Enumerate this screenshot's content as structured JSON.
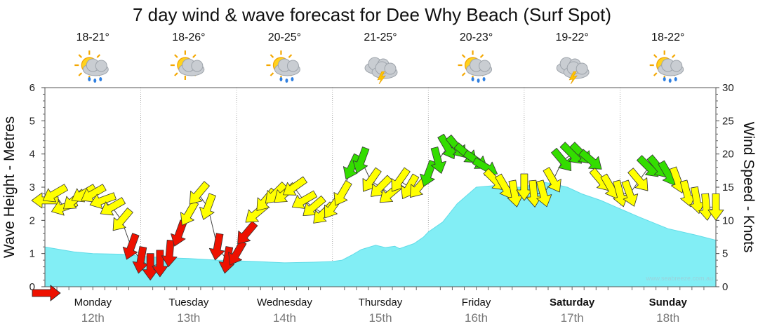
{
  "chart_data": {
    "type": "area",
    "title": "7 day wind & wave forecast for Dee Why Beach  (Surf Spot)",
    "ylabel_left": "Wave Height - Metres",
    "ylabel_right": "Wind Speed - Knots",
    "ylim_left": [
      0,
      6
    ],
    "ylim_right": [
      0,
      30
    ],
    "yticks_left": [
      "0",
      "1",
      "2",
      "3",
      "4",
      "5",
      "6"
    ],
    "yticks_right": [
      "0",
      "5",
      "10",
      "15",
      "20",
      "25",
      "30"
    ],
    "watermark": "www.seabreeze.com.au",
    "colors": {
      "wave_fill": "#82EEF5",
      "wave_line": "#61DCE8",
      "light": "#FFFF00",
      "moderate": "#33DD00",
      "strong": "#EE1100"
    },
    "days": [
      {
        "name": "Monday",
        "date": "12th",
        "temp": "18-21°",
        "icon": "sun-cloud-rain-icon",
        "bold": false
      },
      {
        "name": "Tuesday",
        "date": "13th",
        "temp": "18-26°",
        "icon": "sun-cloud-icon",
        "bold": false
      },
      {
        "name": "Wednesday",
        "date": "14th",
        "temp": "20-25°",
        "icon": "sun-cloud-rain-icon",
        "bold": false
      },
      {
        "name": "Thursday",
        "date": "15th",
        "temp": "21-25°",
        "icon": "storm-icon",
        "bold": false
      },
      {
        "name": "Friday",
        "date": "16th",
        "temp": "20-23°",
        "icon": "sun-cloud-rain-icon",
        "bold": false
      },
      {
        "name": "Saturday",
        "date": "17th",
        "temp": "19-22°",
        "icon": "storm-icon",
        "bold": true
      },
      {
        "name": "Sunday",
        "date": "18th",
        "temp": "18-22°",
        "icon": "sun-cloud-rain-icon",
        "bold": true
      }
    ],
    "wave_series": {
      "name": "Wave Height",
      "x_days": [
        0,
        0.1,
        0.3,
        0.5,
        0.8,
        1.0,
        1.2,
        1.5,
        1.8,
        2.0,
        2.2,
        2.5,
        2.8,
        3.0,
        3.1,
        3.2,
        3.3,
        3.45,
        3.55,
        3.65,
        3.7,
        3.85,
        3.95,
        4.0,
        4.15,
        4.3,
        4.5,
        4.7,
        4.8,
        4.9,
        5.0,
        5.1,
        5.2,
        5.3,
        5.45,
        5.6,
        5.8,
        6.0,
        6.2,
        6.5,
        6.8,
        7.0
      ],
      "y_m": [
        1.2,
        1.15,
        1.05,
        1.0,
        0.98,
        0.92,
        0.88,
        0.85,
        0.8,
        0.78,
        0.76,
        0.72,
        0.74,
        0.76,
        0.8,
        0.95,
        1.12,
        1.25,
        1.18,
        1.22,
        1.15,
        1.3,
        1.5,
        1.65,
        1.95,
        2.5,
        3.0,
        3.05,
        3.03,
        3.0,
        3.0,
        3.1,
        3.15,
        3.1,
        3.0,
        2.8,
        2.6,
        2.35,
        2.1,
        1.75,
        1.55,
        1.4
      ]
    },
    "wind_series": {
      "name": "Wind Speed (knots)",
      "x_days": [
        0,
        0.1,
        0.2,
        0.3,
        0.4,
        0.5,
        0.6,
        0.7,
        0.8,
        0.9,
        1.0,
        1.1,
        1.2,
        1.3,
        1.4,
        1.5,
        1.6,
        1.7,
        1.8,
        1.9,
        2.0,
        2.1,
        2.2,
        2.3,
        2.4,
        2.5,
        2.6,
        2.7,
        2.8,
        2.9,
        3.0,
        3.1,
        3.2,
        3.3,
        3.4,
        3.5,
        3.6,
        3.7,
        3.8,
        3.9,
        4.0,
        4.1,
        4.2,
        4.3,
        4.4,
        4.5,
        4.6,
        4.7,
        4.8,
        4.9,
        5.0,
        5.1,
        5.2,
        5.3,
        5.4,
        5.5,
        5.6,
        5.7,
        5.8,
        5.9,
        6.0,
        6.1,
        6.2,
        6.3,
        6.4,
        6.5,
        6.6,
        6.7,
        6.8,
        6.9,
        7.0
      ],
      "knots": [
        13,
        14,
        12,
        13,
        14,
        14,
        13,
        12,
        10,
        6,
        4,
        3,
        3.5,
        5,
        8,
        11,
        14,
        12,
        6,
        4,
        5,
        8,
        11,
        13,
        14,
        14,
        15,
        13,
        12,
        11,
        12,
        14,
        18,
        19,
        16,
        15,
        14,
        16,
        15,
        15,
        17,
        19,
        21,
        21,
        20,
        19,
        18,
        16,
        15,
        14,
        15,
        14,
        14,
        16,
        19,
        20,
        20,
        19,
        16,
        15,
        14,
        14,
        16,
        18,
        18,
        17,
        16,
        14,
        13,
        12,
        12
      ],
      "direction_deg": [
        270,
        240,
        250,
        230,
        240,
        240,
        250,
        240,
        220,
        200,
        190,
        180,
        180,
        185,
        200,
        210,
        220,
        200,
        190,
        190,
        210,
        220,
        230,
        220,
        225,
        230,
        235,
        240,
        230,
        225,
        215,
        210,
        205,
        200,
        215,
        225,
        230,
        215,
        210,
        220,
        200,
        165,
        150,
        140,
        130,
        125,
        120,
        135,
        150,
        170,
        180,
        175,
        165,
        150,
        140,
        135,
        135,
        130,
        140,
        150,
        165,
        160,
        140,
        135,
        140,
        150,
        160,
        165,
        170,
        175,
        180
      ]
    }
  }
}
